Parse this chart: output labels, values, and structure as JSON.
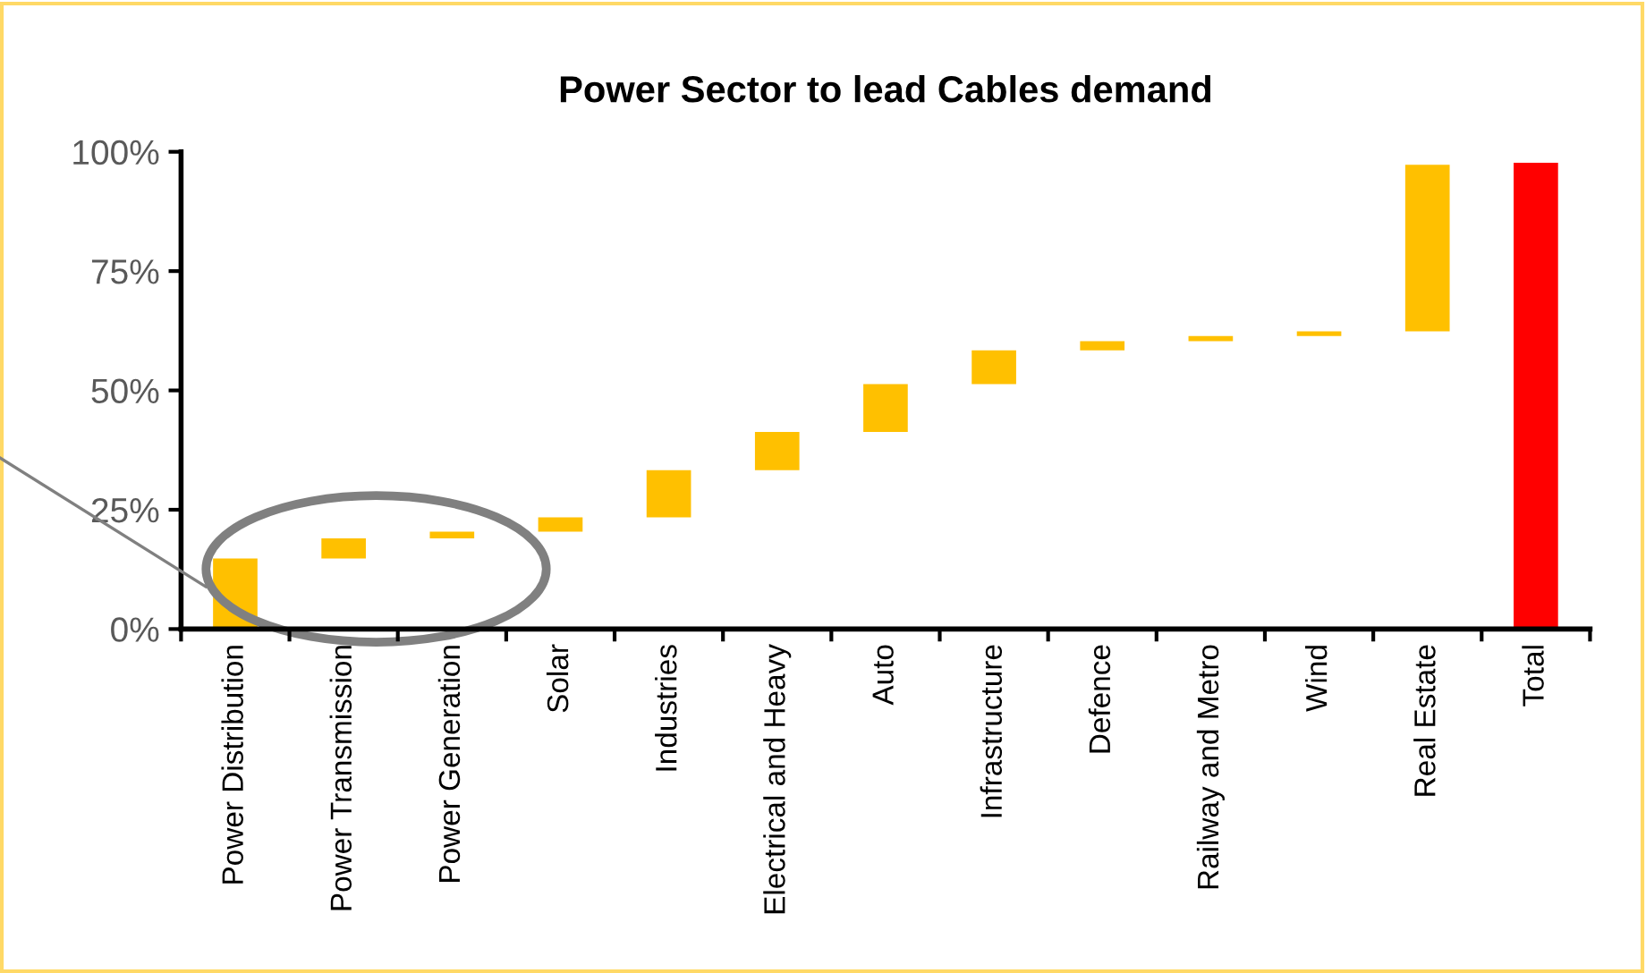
{
  "chart_data": {
    "type": "bar",
    "title": "Power Sector to lead Cables demand",
    "categories": [
      "Power Distribution",
      "Power Transmission",
      "Power Generation",
      "Solar",
      "Industries",
      "Electrical and Heavy",
      "Auto",
      "Infrastructure",
      "Defence",
      "Railway and Metro",
      "Wind",
      "Real Estate",
      "Total"
    ],
    "values": [
      14.8,
      4.2,
      1.4,
      3.0,
      9.9,
      8.0,
      10.0,
      7.1,
      1.9,
      1.1,
      1.0,
      34.9,
      97.7
    ],
    "base": [
      0,
      14.8,
      19.0,
      20.4,
      23.4,
      33.3,
      41.3,
      51.3,
      58.4,
      60.3,
      61.4,
      62.4,
      0
    ],
    "colors": [
      "#ffc000",
      "#ffc000",
      "#ffc000",
      "#ffc000",
      "#ffc000",
      "#ffc000",
      "#ffc000",
      "#ffc000",
      "#ffc000",
      "#ffc000",
      "#ffc000",
      "#ffc000",
      "#ff0000"
    ],
    "ylim": [
      0,
      100
    ],
    "yticks": [
      {
        "value": 0,
        "label": "0%"
      },
      {
        "value": 25,
        "label": "25%"
      },
      {
        "value": 50,
        "label": "50%"
      },
      {
        "value": 75,
        "label": "75%"
      },
      {
        "value": 100,
        "label": "100%"
      }
    ],
    "grid": false
  }
}
